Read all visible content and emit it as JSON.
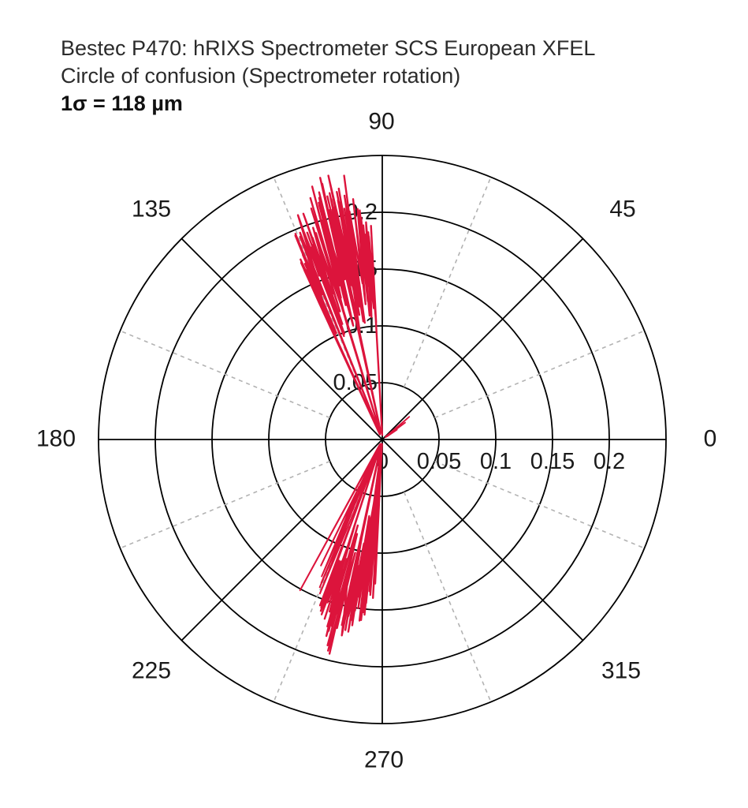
{
  "title": {
    "line1": "Bestec P470: hRIXS Spectrometer SCS European XFEL",
    "line2": "Circle of confusion (Spectrometer rotation)",
    "line3": "1σ = 118 µm"
  },
  "colors": {
    "trace": "#dc143c",
    "major_grid": "#000000",
    "minor_grid": "#b2b2b2",
    "text": "#1a1a1a"
  },
  "chart_data": {
    "type": "polar-line",
    "title": "Bestec P470: hRIXS Spectrometer SCS European XFEL — Circle of confusion (Spectrometer rotation)",
    "annotation": "1σ = 118 µm",
    "r_max": 0.25,
    "r_circles": [
      0.05,
      0.1,
      0.15,
      0.2,
      0.25
    ],
    "minor_radial_start_r": 0.05,
    "grid": {
      "major_angles_deg": [
        0,
        45,
        90,
        135,
        180,
        225,
        270,
        315
      ],
      "minor_angles_deg": [
        22.5,
        67.5,
        112.5,
        157.5,
        202.5,
        247.5,
        292.5,
        337.5
      ]
    },
    "angle_labels": [
      {
        "deg": 0,
        "text": "0"
      },
      {
        "deg": 45,
        "text": "45"
      },
      {
        "deg": 90,
        "text": "90"
      },
      {
        "deg": 135,
        "text": "135"
      },
      {
        "deg": 180,
        "text": "180"
      },
      {
        "deg": 225,
        "text": "225"
      },
      {
        "deg": 270,
        "text": "270"
      },
      {
        "deg": 315,
        "text": "315"
      }
    ],
    "r_axis_labels_horizontal": [
      {
        "r": 0,
        "text": "0"
      },
      {
        "r": 0.05,
        "text": "0.05"
      },
      {
        "r": 0.1,
        "text": "0.1"
      },
      {
        "r": 0.15,
        "text": "0.15"
      },
      {
        "r": 0.2,
        "text": "0.2"
      }
    ],
    "r_axis_labels_vertical": [
      {
        "r": 0.05,
        "text": "0.05"
      },
      {
        "r": 0.1,
        "text": "0.1"
      },
      {
        "r": 0.15,
        "text": "0.15"
      },
      {
        "r": 0.2,
        "text": "0.2"
      }
    ],
    "series": [
      {
        "name": "circle-of-confusion-trace",
        "color": "#dc143c",
        "lobes": [
          {
            "id": "upper-lobe",
            "theta_start": 93.2,
            "theta_end": 115.2,
            "n_spikes": 60,
            "entry_theta": 91.2,
            "outer_env": [
              [
                91,
                0.17
              ],
              [
                95,
                0.215
              ],
              [
                98,
                0.235
              ],
              [
                101,
                0.245
              ],
              [
                104,
                0.24
              ],
              [
                107,
                0.225
              ],
              [
                110,
                0.215
              ],
              [
                113,
                0.205
              ],
              [
                115.5,
                0.185
              ]
            ],
            "inner_env": [
              [
                91,
                0.05
              ],
              [
                94,
                0.115
              ],
              [
                98,
                0.13
              ],
              [
                102,
                0.125
              ],
              [
                106,
                0.12
              ],
              [
                110,
                0.125
              ],
              [
                115.5,
                0.135
              ]
            ],
            "center_returns": [
              101.5,
              106.5,
              110.8,
              114.6
            ]
          },
          {
            "id": "lower-lobe-main",
            "theta_start": 266.2,
            "theta_end": 249.4,
            "n_spikes": 42,
            "entry_theta": 265.9,
            "outer_env": [
              [
                266.5,
                0.15
              ],
              [
                264,
                0.158
              ],
              [
                261,
                0.17
              ],
              [
                258,
                0.19
              ],
              [
                256,
                0.197
              ],
              [
                253.5,
                0.185
              ],
              [
                251,
                0.17
              ],
              [
                249,
                0.16
              ]
            ],
            "inner_env": [
              [
                266.5,
                0.015
              ],
              [
                265,
                0.03
              ],
              [
                263,
                0.06
              ],
              [
                260,
                0.095
              ],
              [
                256,
                0.11
              ],
              [
                252,
                0.1
              ],
              [
                249,
                0.09
              ]
            ],
            "center_returns": [
              264.6,
              263.2,
              257.8,
              251.8
            ]
          },
          {
            "id": "lower-lobe-thin-spikes",
            "theta_start": 248.6,
            "theta_end": 242.4,
            "n_spikes": 5,
            "entry_theta": 248.8,
            "outer_env": [
              [
                249,
                0.15
              ],
              [
                246.5,
                0.155
              ],
              [
                244.5,
                0.12
              ],
              [
                242.3,
                0.166
              ]
            ],
            "inner_env": [
              [
                249,
                0.07
              ],
              [
                246,
                0.05
              ],
              [
                242.3,
                0.03
              ]
            ],
            "center_returns": [
              246.8,
              244.6,
              242.6
            ]
          },
          {
            "id": "center-spike-upper-right",
            "theta_start": 40.5,
            "theta_end": 33,
            "n_spikes": 2,
            "entry_theta": 41,
            "outer_env": [
              [
                41,
                0.034
              ],
              [
                36,
                0.026
              ],
              [
                33,
                0.016
              ]
            ],
            "inner_env": [
              [
                41,
                0.006
              ],
              [
                33,
                0.004
              ]
            ],
            "center_returns": []
          }
        ]
      }
    ]
  }
}
